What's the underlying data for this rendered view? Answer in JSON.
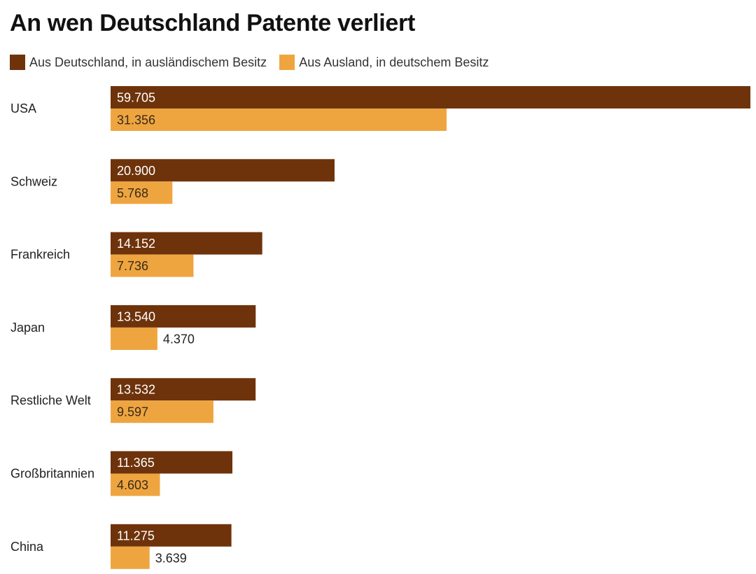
{
  "chart_data": {
    "type": "bar",
    "orientation": "horizontal",
    "title": "An wen Deutschland Patente verliert",
    "categories": [
      "USA",
      "Schweiz",
      "Frankreich",
      "Japan",
      "Restliche Welt",
      "Großbritannien",
      "China"
    ],
    "series": [
      {
        "name": "Aus Deutschland, in ausländischem Besitz",
        "color": "#6e330b",
        "values": [
          59705,
          20900,
          14152,
          13540,
          13532,
          11365,
          11275
        ],
        "labels": [
          "59.705",
          "20.900",
          "14.152",
          "13.540",
          "13.532",
          "11.365",
          "11.275"
        ]
      },
      {
        "name": "Aus Ausland, in deutschem Besitz",
        "color": "#eea540",
        "values": [
          31356,
          5768,
          7736,
          4370,
          9597,
          4603,
          3639
        ],
        "labels": [
          "31.356",
          "5.768",
          "7.736",
          "4.370",
          "9.597",
          "4.603",
          "3.639"
        ]
      }
    ],
    "grid": false,
    "legend": "top-left"
  }
}
